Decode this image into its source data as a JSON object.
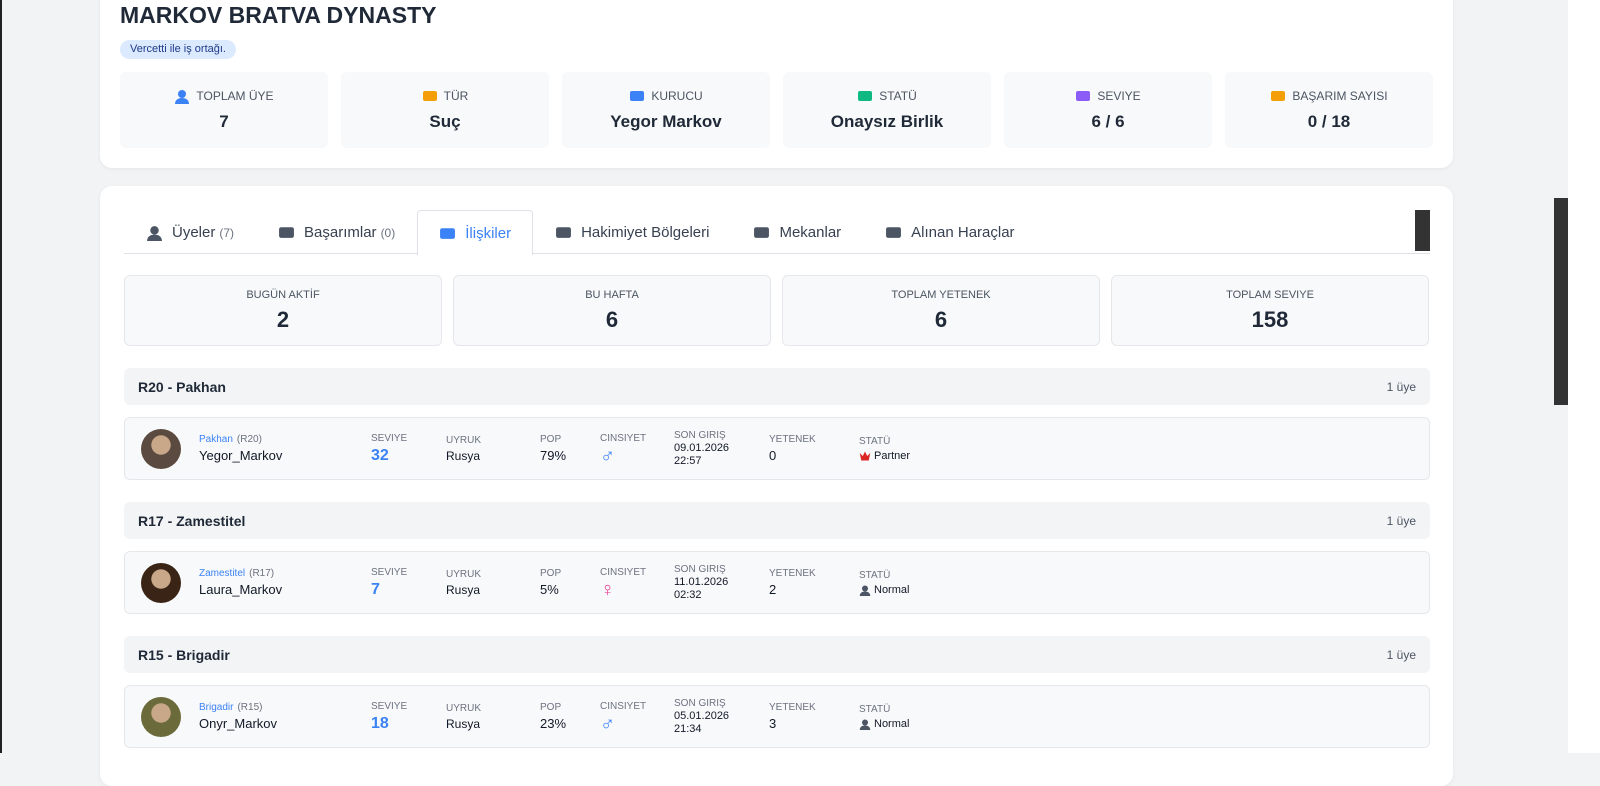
{
  "header": {
    "title": "MARKOV BRATVA DYNASTY",
    "badge": "Vercetti ile iş ortağı."
  },
  "stats": [
    {
      "label": "TOPLAM ÜYE",
      "value": "7",
      "icon_color": "#3b82f6"
    },
    {
      "label": "TÜR",
      "value": "Suç",
      "icon_color": "#f59e0b"
    },
    {
      "label": "KURUCU",
      "value": "Yegor Markov",
      "icon_color": "#3b82f6"
    },
    {
      "label": "STATÜ",
      "value": "Onaysız Birlik",
      "icon_color": "#10b981"
    },
    {
      "label": "SEVIYE",
      "value": "6 / 6",
      "icon_color": "#8b5cf6"
    },
    {
      "label": "BAŞARIM SAYISI",
      "value": "0 / 18",
      "icon_color": "#f59e0b"
    }
  ],
  "tabs": [
    {
      "label": "Üyeler",
      "count": "(7)"
    },
    {
      "label": "Başarımlar",
      "count": "(0)"
    },
    {
      "label": "İlişkiler"
    },
    {
      "label": "Hakimiyet Bölgeleri"
    },
    {
      "label": "Mekanlar"
    },
    {
      "label": "Alınan Haraçlar"
    }
  ],
  "activity": [
    {
      "label": "BUGÜN AKTİF",
      "value": 2
    },
    {
      "label": "BU HAFTA",
      "value": 6
    },
    {
      "label": "TOPLAM YETENEK",
      "value": 6
    },
    {
      "label": "TOPLAM SEVIYE",
      "value": 158
    }
  ],
  "column_labels": {
    "level": "SEVIYE",
    "nationality": "UYRUK",
    "pop": "POP",
    "gender": "CINSIYET",
    "last_login": "SON GIRIŞ",
    "skill": "YETENEK",
    "status": "STATÜ"
  },
  "groups": [
    {
      "title": "R20 - Pakhan",
      "count": "1 üye",
      "members": [
        {
          "rank": "Pakhan",
          "rank_code": "(R20)",
          "name": "Yegor_Markov",
          "level": 32,
          "nationality": "Rusya",
          "pop": "79%",
          "gender": "♂",
          "gender_color": "#3b82f6",
          "last_login_date": "09.01.2026",
          "last_login_time": "22:57",
          "skill": 0,
          "status": "Partner"
        }
      ]
    },
    {
      "title": "R17 - Zamestitel",
      "count": "1 üye",
      "members": [
        {
          "rank": "Zamestitel",
          "rank_code": "(R17)",
          "name": "Laura_Markov",
          "level": 7,
          "nationality": "Rusya",
          "pop": "5%",
          "gender": "♀",
          "gender_color": "#ec4899",
          "last_login_date": "11.01.2026",
          "last_login_time": "02:32",
          "skill": 2,
          "status": "Normal"
        }
      ]
    },
    {
      "title": "R15 - Brigadir",
      "count": "1 üye",
      "members": [
        {
          "rank": "Brigadir",
          "rank_code": "(R15)",
          "name": "Onyr_Markov",
          "level": 18,
          "nationality": "Rusya",
          "pop": "23%",
          "gender": "♂",
          "gender_color": "#3b82f6",
          "last_login_date": "05.01.2026",
          "last_login_time": "21:34",
          "skill": 3,
          "status": "Normal"
        }
      ]
    }
  ]
}
